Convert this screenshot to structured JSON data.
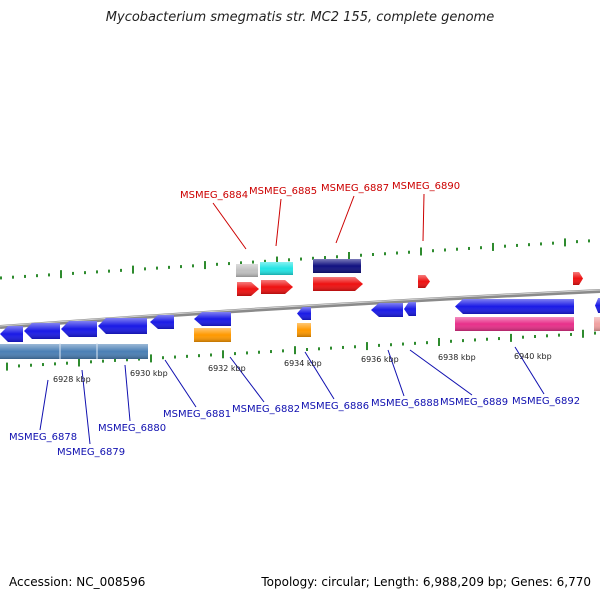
{
  "title": "Mycobacterium smegmatis str. MC2 155, complete genome",
  "footer": {
    "accession": "Accession: NC_008596",
    "summary": "Topology: circular; Length: 6,988,209 bp; Genes: 6,770"
  },
  "colors": {
    "backbone": "#8a8a8a",
    "tick": "#2e8b2e",
    "forward_label": "#cc0000",
    "reverse_label": "#1010b0",
    "cds_blue": "#1a1ae6",
    "rrna_steel": "#4a7fb5",
    "red": "#ee1111",
    "cyan": "#22e5e5",
    "navy": "#101080",
    "orange": "#ff9900",
    "gray": "#c0c0c0",
    "magenta": "#e8308a",
    "pink": "#f0a0a0"
  },
  "scale_labels": [
    "6928 kbp",
    "6930 kbp",
    "6932 kbp",
    "6934 kbp",
    "6936 kbp",
    "6938 kbp",
    "6940 kbp"
  ],
  "forward_genes": [
    "MSMEG_6884",
    "MSMEG_6885",
    "MSMEG_6887",
    "MSMEG_6890"
  ],
  "reverse_genes": [
    "MSMEG_6878",
    "MSMEG_6879",
    "MSMEG_6880",
    "MSMEG_6881",
    "MSMEG_6882",
    "MSMEG_6886",
    "MSMEG_6888",
    "MSMEG_6889",
    "MSMEG_6892"
  ]
}
